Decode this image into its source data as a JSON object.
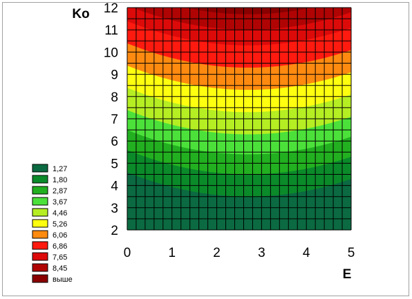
{
  "chart_data": {
    "type": "contour",
    "xlabel": "E",
    "ylabel": "Ko",
    "xlim": [
      0,
      5
    ],
    "ylim": [
      2,
      12
    ],
    "x_ticks": [
      "0",
      "1",
      "2",
      "3",
      "4",
      "5"
    ],
    "y_ticks": [
      "2",
      "3",
      "4",
      "5",
      "6",
      "7",
      "8",
      "9",
      "10",
      "11",
      "12"
    ],
    "grid": true,
    "surface": {
      "x_of_minimum": 2.7,
      "valley_curvature_Ko_per_E2": 0.15
    },
    "contour_levels": [
      {
        "label": "1,27",
        "color": "#0b6a41",
        "ko_at_min": 3.5
      },
      {
        "label": "1,80",
        "color": "#0b8a2a",
        "ko_at_min": 4.5
      },
      {
        "label": "2,87",
        "color": "#22b020",
        "ko_at_min": 5.4
      },
      {
        "label": "3,67",
        "color": "#4be13a",
        "ko_at_min": 6.3
      },
      {
        "label": "4,46",
        "color": "#b5ee22",
        "ko_at_min": 7.3
      },
      {
        "label": "5,26",
        "color": "#ffff10",
        "ko_at_min": 8.3
      },
      {
        "label": "6,06",
        "color": "#ff8a10",
        "ko_at_min": 9.3
      },
      {
        "label": "6,86",
        "color": "#ff1a10",
        "ko_at_min": 10.3
      },
      {
        "label": "7,65",
        "color": "#dd0a0a",
        "ko_at_min": 11.0
      },
      {
        "label": "8,45",
        "color": "#b00404",
        "ko_at_min": 11.7
      },
      {
        "label": "выше",
        "color": "#8a0000"
      }
    ],
    "legend_position": "left"
  }
}
